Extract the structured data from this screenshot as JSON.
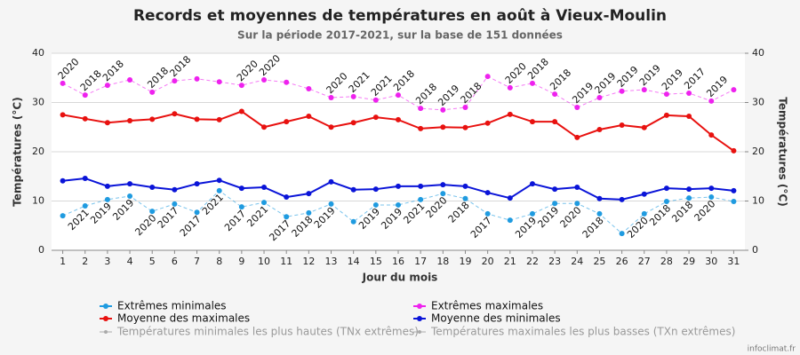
{
  "chart_data": {
    "type": "line",
    "title": "Records et moyennes de températures en août à Vieux-Moulin",
    "subtitle": "Sur la période 2017-2021, sur la base de 151 données",
    "x_label": "Jour du mois",
    "y_label": "Températures (°C)",
    "y2_label": "Températures (°C)",
    "credit": "infoclimat.fr",
    "categories": [
      "1",
      "2",
      "3",
      "4",
      "5",
      "6",
      "7",
      "8",
      "9",
      "10",
      "11",
      "12",
      "13",
      "14",
      "15",
      "16",
      "17",
      "18",
      "19",
      "20",
      "21",
      "22",
      "23",
      "24",
      "25",
      "26",
      "27",
      "28",
      "29",
      "30",
      "31"
    ],
    "ylim": [
      0,
      40
    ],
    "yticks": [
      0,
      10,
      20,
      30,
      40
    ],
    "y2lim": [
      0,
      40
    ],
    "y2ticks": [
      0,
      10,
      20,
      30,
      40
    ],
    "grid": true,
    "series": [
      {
        "name": "Extrêmes minimales",
        "color": "#1f9be0",
        "dashed": true,
        "label_side": "below",
        "values": [
          7.0,
          9.0,
          10.3,
          11.0,
          7.9,
          9.4,
          7.7,
          12.1,
          8.8,
          9.7,
          6.8,
          7.6,
          9.4,
          5.8,
          9.2,
          9.2,
          10.3,
          11.5,
          10.5,
          7.4,
          6.1,
          7.4,
          9.5,
          9.5,
          7.4,
          3.4,
          7.4,
          9.9,
          10.6,
          10.8,
          9.9
        ],
        "point_labels": [
          null,
          "2021",
          "2019",
          "2019",
          "2020",
          "2017",
          "2017",
          "2021",
          "2017",
          "2021",
          "2017",
          "2018",
          "2019",
          null,
          "2019",
          "2019",
          "2021",
          "2020",
          "2018",
          "2017",
          null,
          "2019",
          "2019",
          "2020",
          "2018",
          null,
          "2020",
          "2018",
          "2018",
          "2020",
          null
        ]
      },
      {
        "name": "Extrêmes maximales",
        "color": "#ee22ee",
        "dashed": true,
        "label_side": "above",
        "values": [
          33.9,
          31.5,
          33.5,
          34.6,
          32.1,
          34.4,
          34.8,
          34.2,
          33.5,
          34.6,
          34.1,
          32.8,
          31.0,
          31.2,
          30.5,
          31.5,
          28.8,
          28.5,
          29.0,
          35.3,
          33.0,
          33.9,
          31.7,
          29.0,
          31.0,
          32.3,
          32.6,
          31.7,
          31.9,
          30.3,
          32.6
        ],
        "point_labels": [
          "2020",
          "2018",
          "2018",
          null,
          "2018",
          "2018",
          null,
          null,
          "2020",
          "2020",
          null,
          null,
          "2020",
          "2021",
          "2021",
          "2018",
          "2018",
          "2019",
          "2018",
          null,
          "2020",
          "2018",
          "2018",
          "2019",
          "2019",
          "2019",
          "2019",
          "2019",
          "2017",
          "2019",
          null
        ]
      },
      {
        "name": "Moyenne des maximales",
        "color": "#e8110f",
        "dashed": false,
        "values": [
          27.5,
          26.7,
          25.9,
          26.3,
          26.6,
          27.7,
          26.6,
          26.5,
          28.2,
          25.0,
          26.1,
          27.2,
          25.0,
          25.9,
          27.0,
          26.5,
          24.7,
          25.0,
          24.9,
          25.8,
          27.6,
          26.1,
          26.1,
          22.9,
          24.5,
          25.4,
          24.9,
          27.4,
          27.2,
          23.4,
          20.2
        ]
      },
      {
        "name": "Moyenne des minimales",
        "color": "#0a14d8",
        "dashed": false,
        "values": [
          14.1,
          14.6,
          13.0,
          13.5,
          12.8,
          12.3,
          13.5,
          14.2,
          12.6,
          12.8,
          10.8,
          11.5,
          13.9,
          12.3,
          12.4,
          13.0,
          13.0,
          13.3,
          13.0,
          11.7,
          10.6,
          13.5,
          12.4,
          12.8,
          10.5,
          10.3,
          11.4,
          12.6,
          12.4,
          12.6,
          12.1
        ]
      }
    ],
    "extra_legend": [
      {
        "name": "Températures minimales les plus hautes (TNx extrêmes)",
        "color": "#aaaaaa"
      },
      {
        "name": "Températures maximales les plus basses (TXn extrêmes)",
        "color": "#aaaaaa"
      }
    ]
  }
}
